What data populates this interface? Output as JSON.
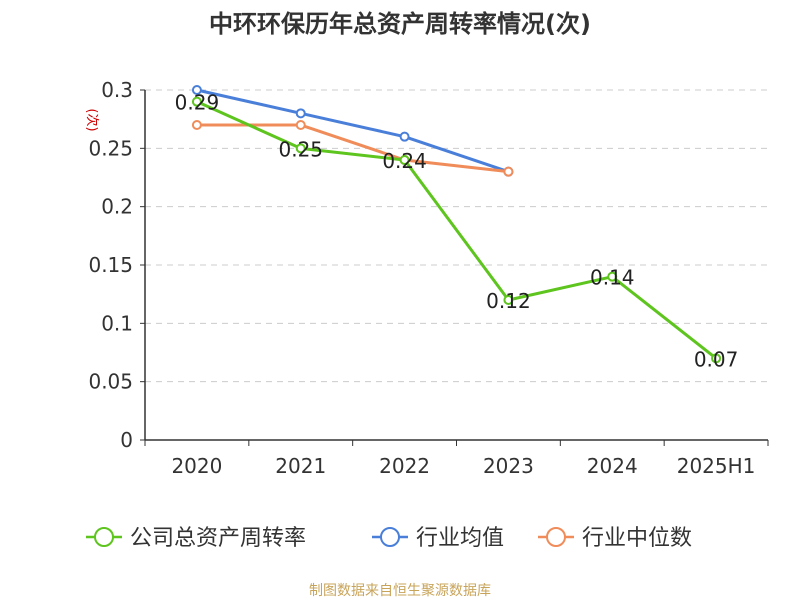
{
  "chart_data": {
    "type": "line",
    "title": "中环环保历年总资产周转率情况(次)",
    "unit_label": "(次)",
    "categories": [
      "2020",
      "2021",
      "2022",
      "2023",
      "2024",
      "2025H1"
    ],
    "ylim": [
      0,
      0.3
    ],
    "yticks": [
      0,
      0.05,
      0.1,
      0.15,
      0.2,
      0.25,
      0.3
    ],
    "ytick_labels": [
      "0",
      "0.05",
      "0.1",
      "0.15",
      "0.2",
      "0.25",
      "0.3"
    ],
    "grid": true,
    "legend_position": "bottom",
    "series": [
      {
        "name": "公司总资产周转率",
        "color": "#5ec41e",
        "values": [
          0.29,
          0.25,
          0.24,
          0.12,
          0.14,
          0.07
        ],
        "labels": [
          "0.29",
          "0.25",
          "0.24",
          "0.12",
          "0.14",
          "0.07"
        ]
      },
      {
        "name": "行业均值",
        "color": "#4a7fd9",
        "values": [
          0.3,
          0.28,
          0.26,
          0.23,
          null,
          null
        ]
      },
      {
        "name": "行业中位数",
        "color": "#f08c5a",
        "values": [
          0.27,
          0.27,
          0.24,
          0.23,
          null,
          null
        ]
      }
    ]
  },
  "source": "制图数据来自恒生聚源数据库",
  "colors": {
    "title": "#333333",
    "axis": "#333333",
    "grid": "#cccccc",
    "unit": "#cc0000",
    "source": "#c8a45a"
  }
}
